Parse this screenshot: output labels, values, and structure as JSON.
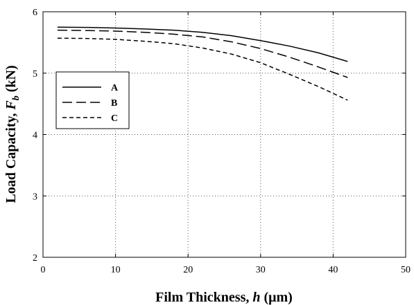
{
  "chart_data": {
    "type": "line",
    "xlabel": {
      "main": "Film Thickness, ",
      "var": "h",
      "unit": " (μm)"
    },
    "ylabel": {
      "main": "Load Capacity, ",
      "var": "F",
      "sub": "b",
      "unit": " (kN)"
    },
    "xlim": [
      0,
      50
    ],
    "ylim": [
      2,
      6
    ],
    "xticks": [
      0,
      10,
      20,
      30,
      40,
      50
    ],
    "yticks": [
      2,
      3,
      4,
      5,
      6
    ],
    "grid": true,
    "legend_position": "left",
    "x": [
      2,
      6,
      10,
      14,
      18,
      22,
      26,
      30,
      34,
      38,
      42
    ],
    "series": [
      {
        "name": "A",
        "dash": "solid",
        "values": [
          5.75,
          5.745,
          5.735,
          5.72,
          5.7,
          5.665,
          5.61,
          5.53,
          5.44,
          5.33,
          5.19
        ]
      },
      {
        "name": "B",
        "dash": "long",
        "values": [
          5.7,
          5.695,
          5.685,
          5.665,
          5.635,
          5.59,
          5.51,
          5.4,
          5.26,
          5.1,
          4.93
        ]
      },
      {
        "name": "C",
        "dash": "short",
        "values": [
          5.57,
          5.565,
          5.55,
          5.52,
          5.48,
          5.41,
          5.31,
          5.17,
          4.98,
          4.78,
          4.56
        ]
      }
    ]
  }
}
